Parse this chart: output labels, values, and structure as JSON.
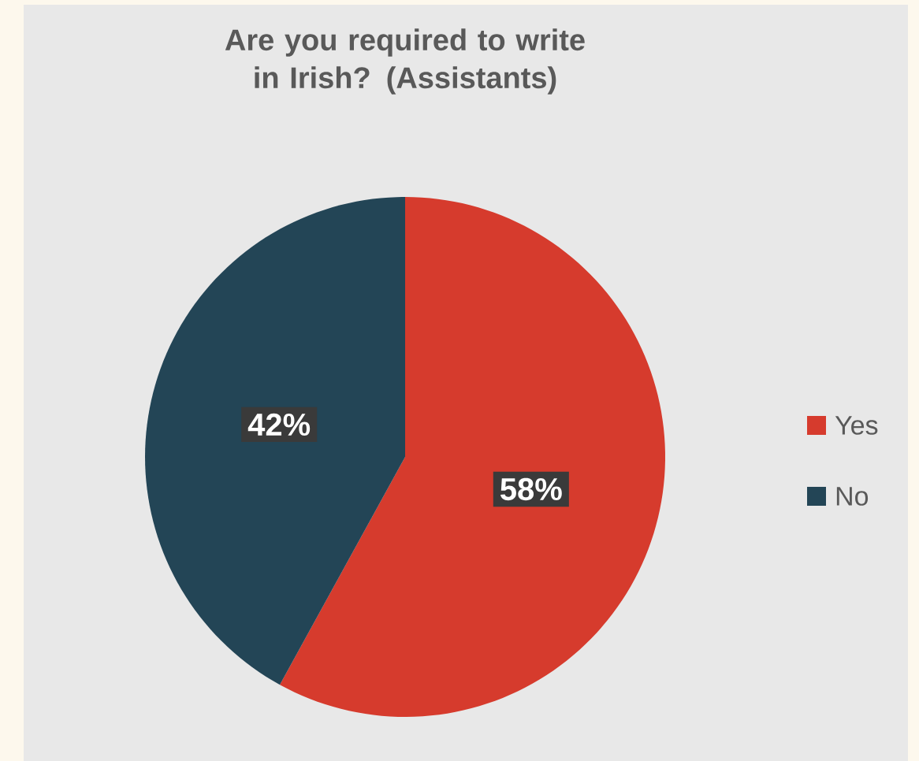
{
  "chart_data": {
    "type": "pie",
    "title": "Are you required to write in Irish? (Assistants)",
    "categories": [
      "Yes",
      "No"
    ],
    "values": [
      58,
      42
    ],
    "colors": [
      "#d63b2d",
      "#234556"
    ],
    "value_labels": [
      "58%",
      "42%"
    ],
    "legend": "right"
  }
}
